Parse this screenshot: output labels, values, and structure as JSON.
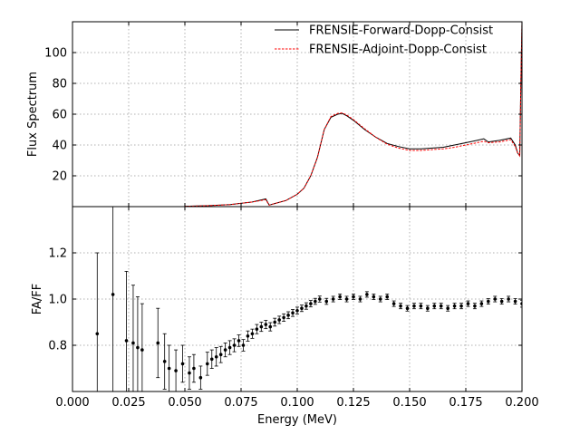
{
  "chart_data": [
    {
      "type": "line",
      "ylabel": "Flux Spectrum",
      "xlabel": "",
      "xlim": [
        0.0,
        0.2
      ],
      "ylim": [
        0,
        120
      ],
      "yticks": [
        20,
        40,
        60,
        80,
        100
      ],
      "grid": true,
      "legend": {
        "placement": "top-right"
      },
      "series": [
        {
          "name": "FRENSIE-Forward-Dopp-Consist",
          "color": "#000000",
          "dash": "solid",
          "x": [
            0.05,
            0.06,
            0.07,
            0.08,
            0.086,
            0.0875,
            0.09,
            0.095,
            0.1,
            0.103,
            0.106,
            0.109,
            0.112,
            0.115,
            0.118,
            0.12,
            0.122,
            0.125,
            0.13,
            0.135,
            0.14,
            0.145,
            0.15,
            0.155,
            0.16,
            0.165,
            0.17,
            0.175,
            0.18,
            0.183,
            0.185,
            0.19,
            0.195,
            0.197,
            0.198,
            0.199,
            0.1995,
            0.2
          ],
          "y": [
            0.2,
            0.6,
            1.3,
            3.0,
            5.0,
            1.0,
            2.0,
            4.0,
            8.0,
            12.0,
            20.0,
            32.0,
            50.0,
            58.0,
            60.0,
            60.5,
            59.0,
            56.0,
            50.0,
            45.0,
            41.0,
            39.0,
            37.5,
            37.5,
            38.0,
            38.5,
            40.0,
            41.5,
            43.0,
            44.0,
            42.0,
            43.0,
            44.5,
            40.0,
            35.0,
            33.0,
            80.0,
            120.0
          ]
        },
        {
          "name": "FRENSIE-Adjoint-Dopp-Consist",
          "color": "#ff0000",
          "dash": "dashed",
          "x": [
            0.05,
            0.06,
            0.07,
            0.08,
            0.086,
            0.0875,
            0.09,
            0.095,
            0.1,
            0.103,
            0.106,
            0.109,
            0.112,
            0.115,
            0.118,
            0.12,
            0.122,
            0.125,
            0.13,
            0.135,
            0.14,
            0.145,
            0.15,
            0.155,
            0.16,
            0.165,
            0.17,
            0.175,
            0.18,
            0.183,
            0.185,
            0.19,
            0.195,
            0.197,
            0.198,
            0.199,
            0.1995,
            0.2
          ],
          "y": [
            0.2,
            0.6,
            1.3,
            3.0,
            4.5,
            1.0,
            2.0,
            4.0,
            8.0,
            12.0,
            20.0,
            32.0,
            50.0,
            58.5,
            60.5,
            60.8,
            59.5,
            56.5,
            50.5,
            45.0,
            40.5,
            38.0,
            36.5,
            36.5,
            37.0,
            37.5,
            38.5,
            40.0,
            41.5,
            42.5,
            41.5,
            42.0,
            43.5,
            39.0,
            35.0,
            33.0,
            80.0,
            120.0
          ]
        }
      ]
    },
    {
      "type": "scatter",
      "xlabel": "Energy (MeV)",
      "ylabel": "FA/FF",
      "xlim": [
        0.0,
        0.2
      ],
      "ylim": [
        0.6,
        1.4
      ],
      "xticks": [
        0.0,
        0.025,
        0.05,
        0.075,
        0.1,
        0.125,
        0.15,
        0.175,
        0.2
      ],
      "xticklabels": [
        "0.000",
        "0.025",
        "0.050",
        "0.075",
        "0.100",
        "0.125",
        "0.150",
        "0.175",
        "0.200"
      ],
      "yticks": [
        0.8,
        1.0,
        1.2
      ],
      "yticklabels": [
        "0.8",
        "1.0",
        "1.2"
      ],
      "grid": true,
      "error_bars": true,
      "series": [
        {
          "color": "#000000",
          "x": [
            0.011,
            0.018,
            0.024,
            0.027,
            0.029,
            0.031,
            0.038,
            0.041,
            0.043,
            0.046,
            0.049,
            0.052,
            0.054,
            0.057,
            0.06,
            0.062,
            0.064,
            0.066,
            0.068,
            0.07,
            0.072,
            0.074,
            0.076,
            0.078,
            0.08,
            0.082,
            0.084,
            0.086,
            0.088,
            0.09,
            0.092,
            0.094,
            0.096,
            0.098,
            0.1,
            0.102,
            0.104,
            0.106,
            0.108,
            0.11,
            0.113,
            0.116,
            0.119,
            0.122,
            0.125,
            0.128,
            0.131,
            0.134,
            0.137,
            0.14,
            0.143,
            0.146,
            0.149,
            0.152,
            0.155,
            0.158,
            0.161,
            0.164,
            0.167,
            0.17,
            0.173,
            0.176,
            0.179,
            0.182,
            0.185,
            0.188,
            0.191,
            0.194,
            0.197,
            0.2
          ],
          "y": [
            0.85,
            1.02,
            0.82,
            0.81,
            0.79,
            0.78,
            0.81,
            0.73,
            0.7,
            0.69,
            0.72,
            0.68,
            0.7,
            0.66,
            0.72,
            0.74,
            0.75,
            0.76,
            0.78,
            0.79,
            0.8,
            0.82,
            0.8,
            0.84,
            0.85,
            0.87,
            0.88,
            0.89,
            0.88,
            0.9,
            0.91,
            0.92,
            0.93,
            0.94,
            0.95,
            0.96,
            0.97,
            0.98,
            0.99,
            1.0,
            0.99,
            1.0,
            1.01,
            1.0,
            1.01,
            1.0,
            1.02,
            1.01,
            1.0,
            1.01,
            0.98,
            0.97,
            0.96,
            0.97,
            0.97,
            0.96,
            0.97,
            0.97,
            0.96,
            0.97,
            0.97,
            0.98,
            0.97,
            0.98,
            0.99,
            1.0,
            0.99,
            1.0,
            0.99,
            0.98
          ],
          "err": [
            0.35,
            0.5,
            0.3,
            0.25,
            0.22,
            0.2,
            0.15,
            0.12,
            0.1,
            0.09,
            0.08,
            0.07,
            0.06,
            0.05,
            0.05,
            0.04,
            0.04,
            0.035,
            0.03,
            0.03,
            0.028,
            0.025,
            0.025,
            0.022,
            0.02,
            0.02,
            0.02,
            0.018,
            0.018,
            0.017,
            0.016,
            0.016,
            0.015,
            0.015,
            0.015,
            0.014,
            0.014,
            0.014,
            0.013,
            0.013,
            0.013,
            0.012,
            0.012,
            0.012,
            0.012,
            0.012,
            0.012,
            0.012,
            0.012,
            0.012,
            0.012,
            0.012,
            0.012,
            0.012,
            0.012,
            0.012,
            0.012,
            0.012,
            0.012,
            0.012,
            0.012,
            0.012,
            0.012,
            0.012,
            0.012,
            0.012,
            0.012,
            0.012,
            0.012,
            0.015
          ]
        }
      ]
    }
  ]
}
